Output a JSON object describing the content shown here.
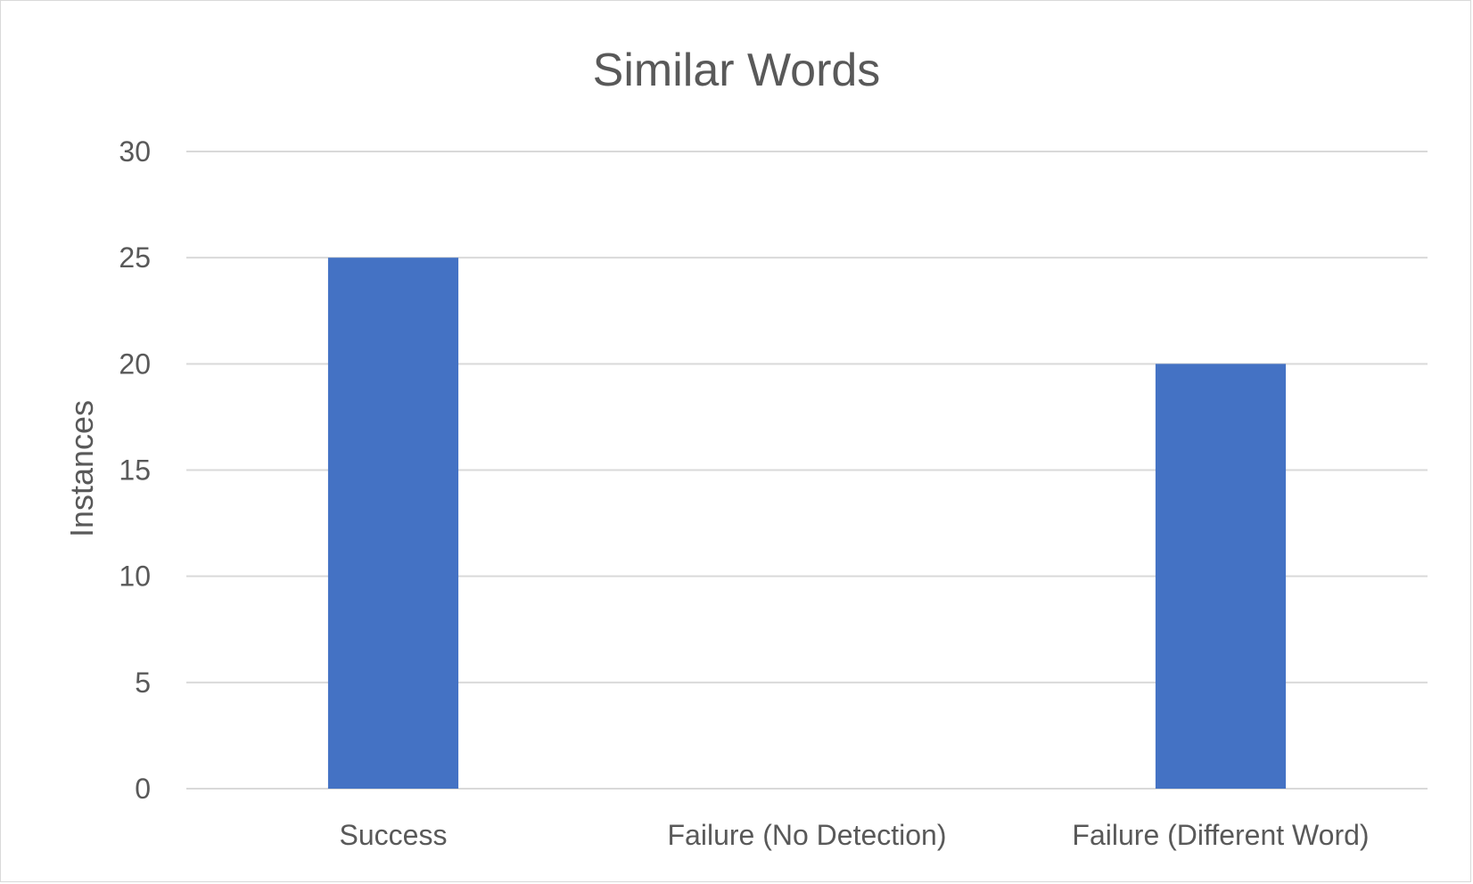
{
  "chart_data": {
    "type": "bar",
    "title": "Similar Words",
    "xlabel": "",
    "ylabel": "Instances",
    "categories": [
      "Success",
      "Failure (No Detection)",
      "Failure (Different Word)"
    ],
    "values": [
      25,
      0,
      20
    ],
    "ylim": [
      0,
      30
    ],
    "yticks": [
      0,
      5,
      10,
      15,
      20,
      25,
      30
    ],
    "grid": true,
    "legend": "none",
    "bar_color": "#4472C4"
  }
}
